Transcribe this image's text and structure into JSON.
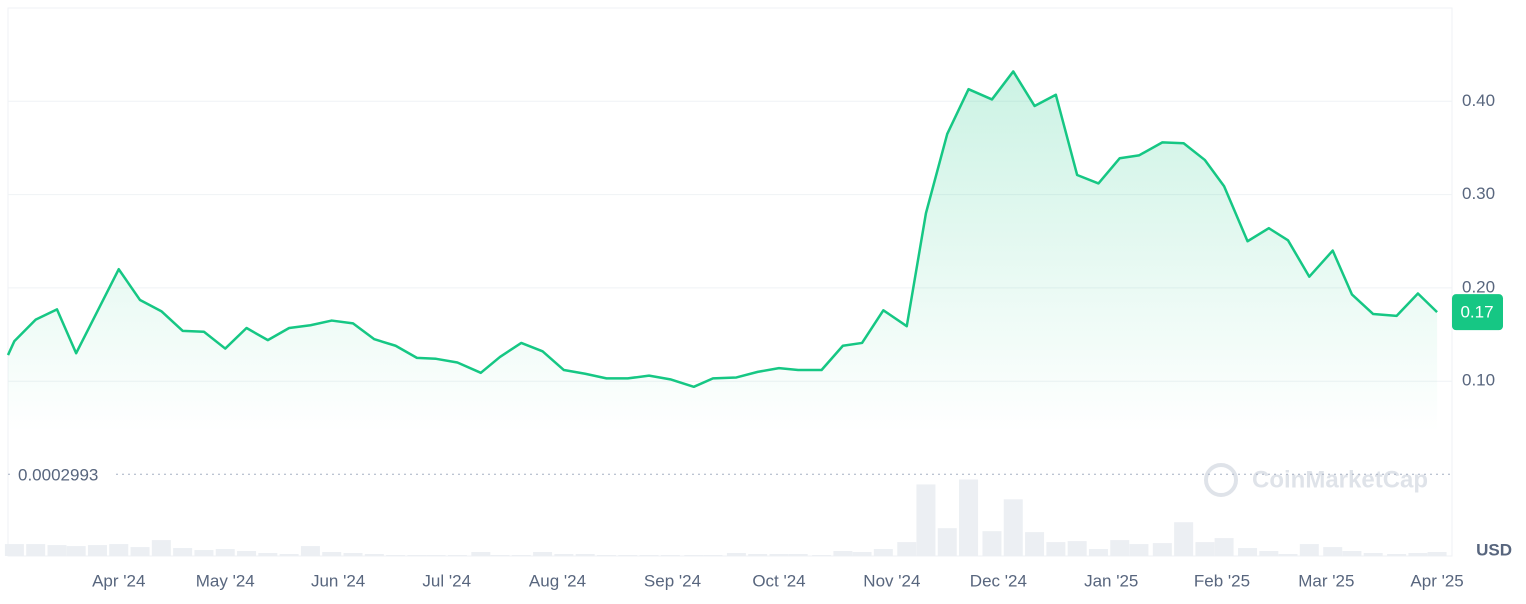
{
  "chart_data": {
    "type": "line",
    "watermark": "CoinMarketCap",
    "unit": "USD",
    "x": [
      0,
      0.3,
      1.3,
      2.3,
      3.2,
      4.2,
      5.2,
      6.2,
      7.2,
      8.2,
      9.2,
      10.2,
      11.2,
      12.2,
      13.2,
      14.2,
      15.2,
      16.2,
      17.2,
      18.2,
      19.2,
      20.1,
      21.1,
      22.2,
      23.1,
      24.1,
      25.1,
      26.1,
      27.1,
      28.1,
      29.1,
      30.1,
      31.1,
      32.2,
      33.1,
      34.2,
      35.2,
      36.2,
      37.1,
      38.2,
      39.2,
      40.1,
      41.1,
      42.2,
      43.1,
      44.1,
      45.1,
      46.2,
      47.2,
      48.2,
      49.2,
      50.2,
      51.2,
      52.2,
      53.1,
      54.2,
      55.2,
      56.2,
      57.1,
      58.2,
      59.2,
      60.1,
      61.1,
      62.2,
      63.1,
      64.1,
      65.2,
      66.2,
      67.1
    ],
    "series": [
      {
        "name": "Price",
        "color": "#16c784",
        "values": [
          0.128,
          0.143,
          0.166,
          0.177,
          0.13,
          0.175,
          0.22,
          0.187,
          0.175,
          0.154,
          0.153,
          0.135,
          0.157,
          0.144,
          0.157,
          0.16,
          0.165,
          0.162,
          0.145,
          0.138,
          0.125,
          0.124,
          0.12,
          0.109,
          0.126,
          0.141,
          0.132,
          0.112,
          0.108,
          0.103,
          0.103,
          0.106,
          0.102,
          0.094,
          0.103,
          0.104,
          0.11,
          0.114,
          0.112,
          0.112,
          0.138,
          0.141,
          0.176,
          0.159,
          0.28,
          0.365,
          0.413,
          0.402,
          0.432,
          0.395,
          0.407,
          0.321,
          0.312,
          0.339,
          0.342,
          0.356,
          0.355,
          0.337,
          0.309,
          0.25,
          0.264,
          0.251,
          0.212,
          0.24,
          0.193,
          0.172,
          0.17,
          0.194,
          0.174
        ]
      },
      {
        "name": "Volume",
        "color": "#eceff3",
        "axis": "volume",
        "values": [
          null,
          12,
          12,
          11,
          10,
          11,
          12,
          9,
          16,
          8,
          6,
          7,
          5,
          3,
          2,
          10,
          4,
          3,
          2,
          1,
          1,
          1,
          1,
          4,
          1,
          1,
          4,
          2,
          2,
          1,
          1,
          1,
          1,
          1,
          1,
          3,
          2,
          2,
          2,
          1,
          5,
          4,
          7,
          14,
          72,
          28,
          77,
          25,
          57,
          24,
          14,
          15,
          7,
          16,
          12,
          13,
          34,
          14,
          18,
          8,
          5,
          2,
          12,
          9,
          5,
          3,
          2,
          3,
          4
        ]
      }
    ],
    "current": {
      "value": 0.174,
      "label": "0.17"
    },
    "baseline": 0.0002993,
    "xlim": [
      0,
      67.8
    ],
    "xticks": [
      {
        "value": 5.2,
        "label": "Apr '24"
      },
      {
        "value": 10.2,
        "label": "May '24"
      },
      {
        "value": 15.5,
        "label": "Jun '24"
      },
      {
        "value": 20.6,
        "label": "Jul '24"
      },
      {
        "value": 25.8,
        "label": "Aug '24"
      },
      {
        "value": 31.2,
        "label": "Sep '24"
      },
      {
        "value": 36.2,
        "label": "Oct '24"
      },
      {
        "value": 41.5,
        "label": "Nov '24"
      },
      {
        "value": 46.5,
        "label": "Dec '24"
      },
      {
        "value": 51.8,
        "label": "Jan '25"
      },
      {
        "value": 57.0,
        "label": "Feb '25"
      },
      {
        "value": 61.9,
        "label": "Mar '25"
      },
      {
        "value": 67.1,
        "label": "Apr '25"
      }
    ],
    "ylim": [
      0,
      0.5
    ],
    "yticks": [
      {
        "value": 0.1,
        "label": "0.10"
      },
      {
        "value": 0.2,
        "label": "0.20"
      },
      {
        "value": 0.3,
        "label": "0.30"
      },
      {
        "value": 0.4,
        "label": "0.40"
      }
    ],
    "volume_lim": [
      0,
      82
    ],
    "grid": true
  }
}
